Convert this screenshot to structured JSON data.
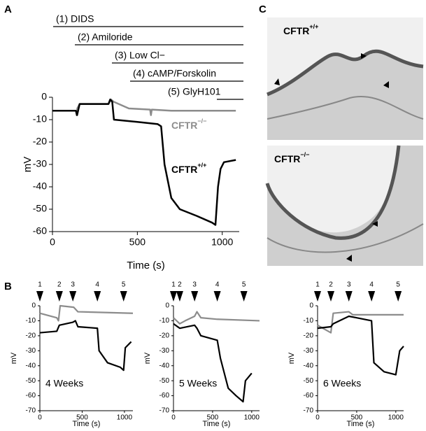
{
  "panel_labels": [
    "A",
    "B",
    "C"
  ],
  "treatments": [
    "(1) DIDS",
    "(2) Amiloride",
    "(3) Low Cl−",
    "(4) cAMP/Forskolin",
    "(5) GlyH101"
  ],
  "micrographs": [
    {
      "name": "CFTR",
      "genotype": "+/+"
    },
    {
      "name": "CFTR",
      "genotype": "−/−"
    }
  ],
  "chart_data": [
    {
      "type": "line",
      "x_label": "Time (s)",
      "y_label": "mV",
      "xlim": [
        0,
        1100
      ],
      "xticks": [
        0,
        500,
        1000
      ],
      "ylim": [
        -60,
        0
      ],
      "yticks": [
        0,
        -10,
        -20,
        -30,
        -40,
        -50,
        -60
      ],
      "series": [
        {
          "name": "CFTR",
          "genotype": "−/−",
          "color": "#8c8c8c",
          "x": [
            0,
            138,
            142,
            146,
            160,
            330,
            345,
            360,
            450,
            575,
            580,
            585,
            700,
            1080
          ],
          "values": [
            -6,
            -6,
            -8,
            -5,
            -3,
            -3,
            -1,
            -2,
            -5,
            -5.5,
            -8,
            -5.5,
            -6,
            -6
          ]
        },
        {
          "name": "CFTR",
          "genotype": "+/+",
          "color": "#000000",
          "x": [
            0,
            138,
            145,
            160,
            330,
            340,
            352,
            362,
            500,
            620,
            640,
            660,
            700,
            750,
            850,
            940,
            960,
            975,
            990,
            1010,
            1080
          ],
          "values": [
            -6,
            -6,
            -8,
            -3,
            -3,
            -1,
            -2,
            -10,
            -11,
            -12,
            -13,
            -30,
            -45,
            -50,
            -53,
            -56,
            -57,
            -40,
            -32,
            -29,
            -28
          ]
        }
      ]
    },
    {
      "type": "line",
      "title": "4 Weeks",
      "x_label": "Time (s)",
      "y_label": "mV",
      "xlim": [
        0,
        1100
      ],
      "xticks": [
        0,
        500,
        1000
      ],
      "ylim": [
        -70,
        0
      ],
      "yticks": [
        0,
        -10,
        -20,
        -30,
        -40,
        -50,
        -60,
        -70
      ],
      "markers": {
        "labels": [
          "1",
          "2",
          "3",
          "4",
          "5"
        ],
        "x": [
          0,
          230,
          390,
          680,
          990
        ]
      },
      "series": [
        {
          "color": "#8c8c8c",
          "x": [
            0,
            200,
            220,
            240,
            400,
            450,
            1100
          ],
          "values": [
            -5,
            -8,
            -10,
            0,
            -1,
            -4,
            -5
          ]
        },
        {
          "color": "#000000",
          "x": [
            0,
            200,
            230,
            390,
            420,
            450,
            680,
            700,
            800,
            950,
            990,
            1010,
            1080
          ],
          "values": [
            -18,
            -17,
            -13,
            -11,
            -10,
            -14,
            -15,
            -30,
            -38,
            -41,
            -43,
            -28,
            -24
          ]
        }
      ]
    },
    {
      "type": "line",
      "title": "5 Weeks",
      "x_label": "Time (s)",
      "y_label": "mV",
      "xlim": [
        0,
        1100
      ],
      "xticks": [
        0,
        500,
        1000
      ],
      "ylim": [
        -70,
        0
      ],
      "yticks": [
        0,
        -10,
        -20,
        -30,
        -40,
        -50,
        -60,
        -70
      ],
      "markers": {
        "labels": [
          "1",
          "2",
          "3",
          "4",
          "5"
        ],
        "x": [
          0,
          80,
          270,
          560,
          900
        ]
      },
      "series": [
        {
          "color": "#8c8c8c",
          "x": [
            0,
            80,
            150,
            270,
            300,
            350,
            560,
            1100
          ],
          "values": [
            -8,
            -12,
            -10,
            -7,
            -4,
            -8,
            -9,
            -10
          ]
        },
        {
          "color": "#000000",
          "x": [
            0,
            80,
            270,
            300,
            350,
            560,
            600,
            700,
            800,
            890,
            920,
            1000
          ],
          "values": [
            -12,
            -15,
            -13,
            -15,
            -20,
            -23,
            -35,
            -55,
            -60,
            -64,
            -50,
            -45
          ]
        }
      ]
    },
    {
      "type": "line",
      "title": "6 Weeks",
      "x_label": "Time (s)",
      "y_label": "mV",
      "xlim": [
        0,
        1100
      ],
      "xticks": [
        0,
        500,
        1000
      ],
      "ylim": [
        -70,
        0
      ],
      "yticks": [
        0,
        -10,
        -20,
        -30,
        -40,
        -50,
        -60,
        -70
      ],
      "markers": {
        "labels": [
          "1",
          "2",
          "3",
          "4",
          "5"
        ],
        "x": [
          0,
          170,
          400,
          690,
          1030
        ]
      },
      "series": [
        {
          "color": "#8c8c8c",
          "x": [
            0,
            170,
            200,
            400,
            450,
            1100
          ],
          "values": [
            -13,
            -18,
            -5,
            -4,
            -6,
            -6
          ]
        },
        {
          "color": "#000000",
          "x": [
            0,
            170,
            200,
            400,
            500,
            690,
            720,
            850,
            1000,
            1050,
            1100
          ],
          "values": [
            -15,
            -14,
            -12,
            -7,
            -8,
            -10,
            -38,
            -44,
            -46,
            -30,
            -27
          ]
        }
      ]
    }
  ]
}
